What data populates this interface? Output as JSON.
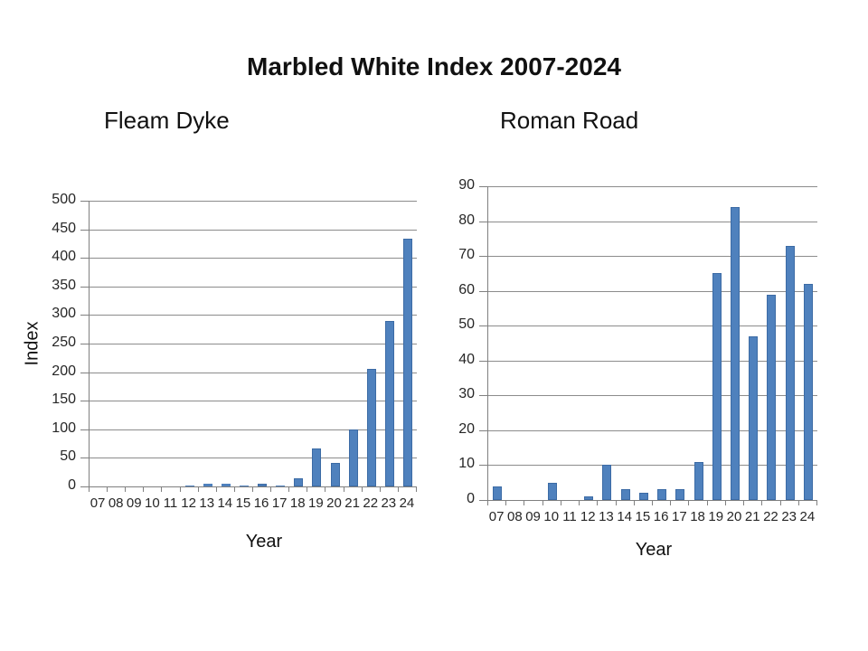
{
  "main_title": "Marbled White Index 2007-2024",
  "colors": {
    "bar_fill": "#4f81bd",
    "bar_border": "#3c6ba5",
    "gridline": "#8c8c8c",
    "axis": "#808080",
    "text": "#1a1a1a"
  },
  "chart_data": [
    {
      "type": "bar",
      "title": "Fleam Dyke",
      "xlabel": "Year",
      "ylabel": "Index",
      "ylim": [
        0,
        500
      ],
      "ytick_step": 50,
      "yticks": [
        0,
        50,
        100,
        150,
        200,
        250,
        300,
        350,
        400,
        450,
        500
      ],
      "grid": true,
      "legend": "none",
      "categories": [
        "07",
        "08",
        "09",
        "10",
        "11",
        "12",
        "13",
        "14",
        "15",
        "16",
        "17",
        "18",
        "19",
        "20",
        "21",
        "22",
        "23",
        "24"
      ],
      "values": [
        0,
        0,
        0,
        0,
        0,
        2,
        4,
        4,
        2,
        5,
        2,
        14,
        67,
        41,
        100,
        206,
        290,
        434
      ]
    },
    {
      "type": "bar",
      "title": "Roman Road",
      "xlabel": "Year",
      "ylabel": "",
      "ylim": [
        0,
        90
      ],
      "ytick_step": 10,
      "yticks": [
        0,
        10,
        20,
        30,
        40,
        50,
        60,
        70,
        80,
        90
      ],
      "grid": true,
      "legend": "none",
      "categories": [
        "07",
        "08",
        "09",
        "10",
        "11",
        "12",
        "13",
        "14",
        "15",
        "16",
        "17",
        "18",
        "19",
        "20",
        "21",
        "22",
        "23",
        "24"
      ],
      "values": [
        4,
        0,
        0,
        5,
        0,
        1,
        10,
        3,
        2,
        3,
        3,
        11,
        65,
        84,
        47,
        59,
        73,
        62
      ]
    }
  ]
}
